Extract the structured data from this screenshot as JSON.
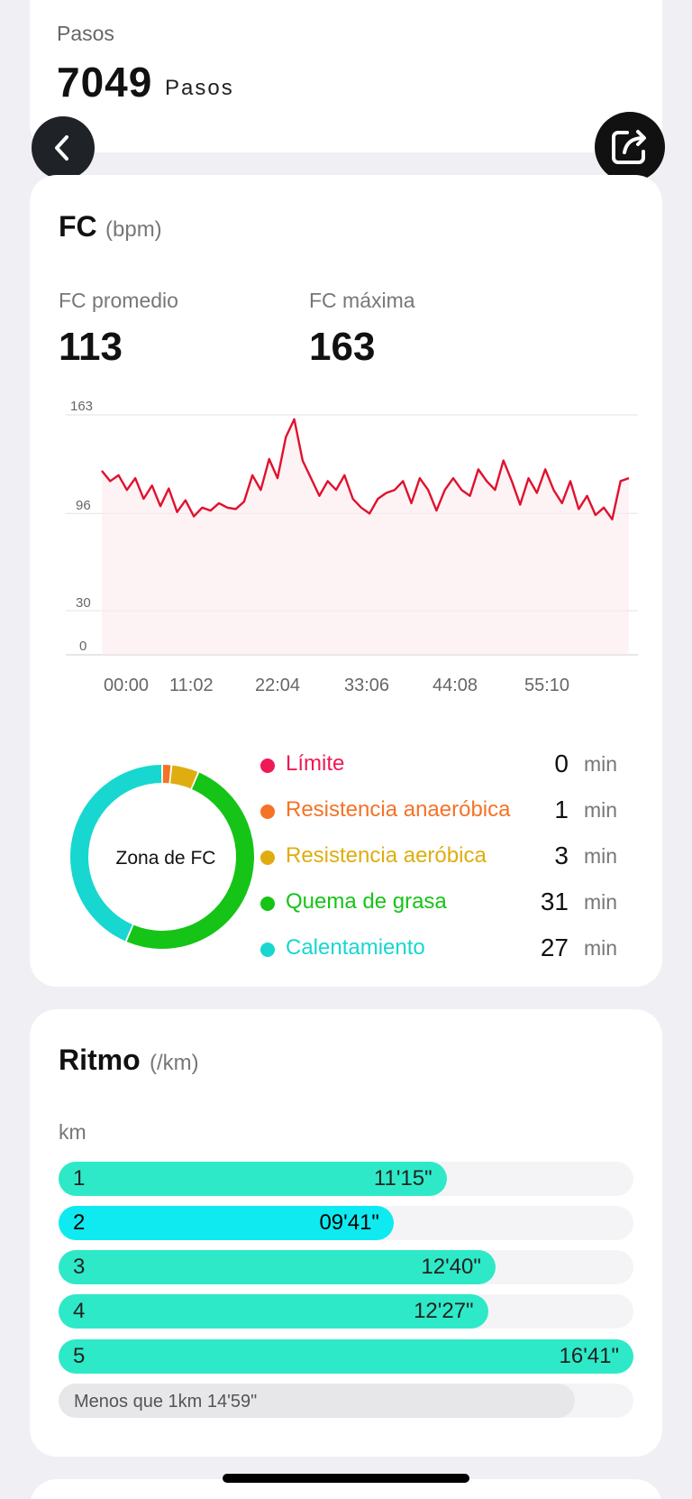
{
  "steps": {
    "label": "Pasos",
    "value": "7049",
    "unit": "Pasos"
  },
  "nav": {
    "back_icon": "chevron-left-icon",
    "share_icon": "share-icon"
  },
  "hr": {
    "title": "FC",
    "unit": "(bpm)",
    "avg_label": "FC promedio",
    "avg_value": "113",
    "max_label": "FC máxima",
    "max_value": "163"
  },
  "chart_data": {
    "type": "line",
    "title": "",
    "xlabel": "",
    "ylabel": "",
    "y_ticks": [
      "163",
      "96",
      "30",
      "0"
    ],
    "x_ticks": [
      "00:00",
      "11:02",
      "22:04",
      "33:06",
      "44:08",
      "55:10"
    ],
    "ylim": [
      0,
      163
    ],
    "xlim": [
      0,
      63
    ],
    "color": "#e0112e",
    "grid": true,
    "series": [
      {
        "values": [
          [
            0,
            125
          ],
          [
            1,
            118
          ],
          [
            2,
            122
          ],
          [
            3,
            112
          ],
          [
            4,
            120
          ],
          [
            5,
            106
          ],
          [
            6,
            115
          ],
          [
            7,
            101
          ],
          [
            8,
            113
          ],
          [
            9,
            97
          ],
          [
            10,
            105
          ],
          [
            11,
            94
          ],
          [
            12,
            100
          ],
          [
            13,
            98
          ],
          [
            14,
            103
          ],
          [
            15,
            100
          ],
          [
            16,
            99
          ],
          [
            17,
            104
          ],
          [
            18,
            122
          ],
          [
            19,
            112
          ],
          [
            20,
            133
          ],
          [
            21,
            120
          ],
          [
            22,
            148
          ],
          [
            23,
            160
          ],
          [
            24,
            132
          ],
          [
            25,
            120
          ],
          [
            26,
            108
          ],
          [
            27,
            118
          ],
          [
            28,
            112
          ],
          [
            29,
            122
          ],
          [
            30,
            106
          ],
          [
            31,
            100
          ],
          [
            32,
            96
          ],
          [
            33,
            106
          ],
          [
            34,
            110
          ],
          [
            35,
            112
          ],
          [
            36,
            118
          ],
          [
            37,
            103
          ],
          [
            38,
            120
          ],
          [
            39,
            112
          ],
          [
            40,
            98
          ],
          [
            41,
            112
          ],
          [
            42,
            120
          ],
          [
            43,
            112
          ],
          [
            44,
            108
          ],
          [
            45,
            126
          ],
          [
            46,
            118
          ],
          [
            47,
            112
          ],
          [
            48,
            132
          ],
          [
            49,
            118
          ],
          [
            50,
            102
          ],
          [
            51,
            120
          ],
          [
            52,
            110
          ],
          [
            53,
            126
          ],
          [
            54,
            112
          ],
          [
            55,
            103
          ],
          [
            56,
            118
          ],
          [
            57,
            99
          ],
          [
            58,
            108
          ],
          [
            59,
            95
          ],
          [
            60,
            100
          ],
          [
            61,
            92
          ],
          [
            62,
            118
          ],
          [
            63,
            120
          ]
        ]
      }
    ]
  },
  "zones": {
    "center_label": "Zona de FC",
    "items": [
      {
        "name": "Límite",
        "value": "0",
        "unit": "min",
        "color": "#ef1955",
        "minutes": 0
      },
      {
        "name": "Resistencia anaeróbica",
        "value": "1",
        "unit": "min",
        "color": "#f57226",
        "minutes": 1
      },
      {
        "name": "Resistencia aeróbica",
        "value": "3",
        "unit": "min",
        "color": "#dfad10",
        "minutes": 3
      },
      {
        "name": "Quema de grasa",
        "value": "31",
        "unit": "min",
        "color": "#15c416",
        "minutes": 31
      },
      {
        "name": "Calentamiento",
        "value": "27",
        "unit": "min",
        "color": "#17d7d0",
        "minutes": 27
      }
    ]
  },
  "pace": {
    "title": "Ritmo",
    "unit": "(/km)",
    "km_label": "km",
    "rows": [
      {
        "km": "1",
        "time": "11'15\"",
        "fraction": 0.675
      },
      {
        "km": "2",
        "time": "09'41\"",
        "fraction": 0.583,
        "fastest": true
      },
      {
        "km": "3",
        "time": "12'40\"",
        "fraction": 0.76
      },
      {
        "km": "4",
        "time": "12'27\"",
        "fraction": 0.747
      },
      {
        "km": "5",
        "time": "16'41\"",
        "fraction": 1.0
      }
    ],
    "remainder": "Menos que 1km 14'59\""
  }
}
